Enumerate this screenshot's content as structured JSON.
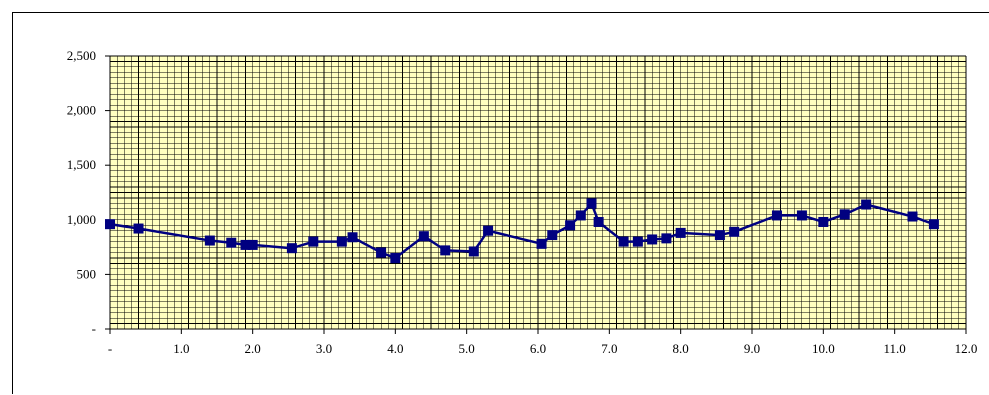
{
  "chart_data": {
    "type": "line",
    "title": "",
    "xlabel": "",
    "ylabel": "",
    "xlim": [
      0,
      12
    ],
    "ylim": [
      0,
      2500
    ],
    "grid": true,
    "legend": "none",
    "colors": {
      "series": "#000080",
      "plot_bg": "#FFFFC0",
      "grid": "#000000"
    },
    "x_ticks": [
      {
        "value": 0,
        "label": "-"
      },
      {
        "value": 1,
        "label": "1.0"
      },
      {
        "value": 2,
        "label": "2.0"
      },
      {
        "value": 3,
        "label": "3.0"
      },
      {
        "value": 4,
        "label": "4.0"
      },
      {
        "value": 5,
        "label": "5.0"
      },
      {
        "value": 6,
        "label": "6.0"
      },
      {
        "value": 7,
        "label": "7.0"
      },
      {
        "value": 8,
        "label": "8.0"
      },
      {
        "value": 9,
        "label": "9.0"
      },
      {
        "value": 10,
        "label": "10.0"
      },
      {
        "value": 11,
        "label": "11.0"
      },
      {
        "value": 12,
        "label": "12.0"
      }
    ],
    "y_ticks": [
      {
        "value": 0,
        "label": "-"
      },
      {
        "value": 500,
        "label": "500"
      },
      {
        "value": 1000,
        "label": "1,000"
      },
      {
        "value": 1500,
        "label": "1,500"
      },
      {
        "value": 2000,
        "label": "2,000"
      },
      {
        "value": 2500,
        "label": "2,500"
      }
    ],
    "series": [
      {
        "marker": "square",
        "x": [
          0.0,
          0.4,
          1.4,
          1.7,
          1.9,
          2.0,
          2.55,
          2.85,
          3.25,
          3.4,
          3.8,
          4.0,
          4.4,
          4.7,
          5.1,
          5.3,
          6.05,
          6.2,
          6.45,
          6.6,
          6.75,
          6.85,
          7.2,
          7.4,
          7.6,
          7.8,
          8.0,
          8.55,
          8.75,
          9.35,
          9.7,
          10.0,
          10.3,
          10.6,
          11.25,
          11.55
        ],
        "y": [
          960,
          920,
          810,
          790,
          770,
          770,
          740,
          800,
          800,
          840,
          700,
          650,
          850,
          720,
          710,
          900,
          780,
          860,
          950,
          1040,
          1150,
          980,
          800,
          800,
          820,
          830,
          880,
          860,
          890,
          1040,
          1040,
          980,
          1050,
          1140,
          1030,
          960
        ]
      }
    ]
  }
}
